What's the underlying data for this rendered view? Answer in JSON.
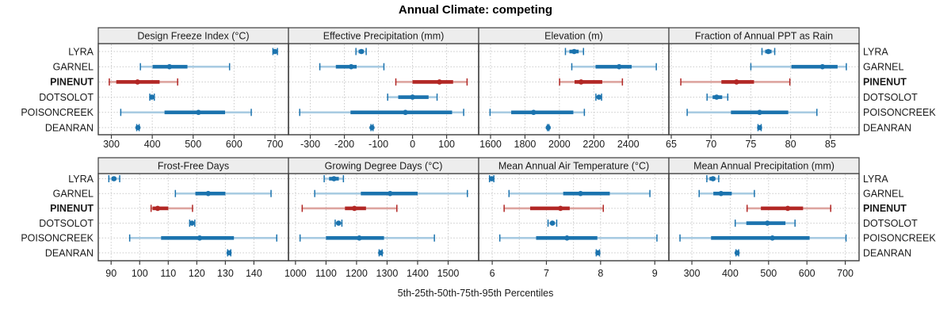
{
  "figure": {
    "title": "Annual Climate: competing",
    "caption": "5th-25th-50th-75th-95th Percentiles"
  },
  "chart_data": {
    "type": "scatter",
    "subtype": "percentile-interval-dotplot",
    "title": "Annual Climate: competing",
    "caption": "5th-25th-50th-75th-95th Percentiles",
    "percentiles": [
      5,
      25,
      50,
      75,
      95
    ],
    "sites": [
      "LYRA",
      "GARNEL",
      "PINENUT",
      "DOTSOLOT",
      "POISONCREEK",
      "DEANRAN"
    ],
    "highlight_site": "PINENUT",
    "legend_position": "none",
    "grid": true,
    "colors": {
      "site_color": "#1b73ae",
      "site_band_color": "#a8cbe2",
      "highlight_color": "#b22725",
      "highlight_band_color": "#dda49f",
      "grid_color": "#c9c9c9",
      "border_color": "#3c3c3c",
      "strip_bg": "#ededed",
      "text_color": "#1a1a1a"
    },
    "panels": [
      {
        "title": "Design Freeze Index (°C)",
        "row": 0,
        "col": 0,
        "xlim": [
          268,
          733
        ],
        "ticks": [
          300,
          400,
          500,
          600,
          700
        ],
        "tick_labels": [
          "300",
          "400",
          "500",
          "600",
          "700"
        ],
        "series": {
          "LYRA": [
            695,
            698,
            700,
            702,
            706
          ],
          "GARNEL": [
            371,
            401,
            442,
            486,
            589
          ],
          "PINENUT": [
            295,
            312,
            364,
            418,
            462
          ],
          "DOTSOLOT": [
            394,
            397,
            399,
            402,
            405
          ],
          "POISONCREEK": [
            323,
            430,
            513,
            578,
            642
          ],
          "DEANRAN": [
            362,
            364,
            365,
            366,
            368
          ]
        }
      },
      {
        "title": "Effective Precipitation (mm)",
        "row": 0,
        "col": 1,
        "xlim": [
          -364,
          194
        ],
        "ticks": [
          -300,
          -200,
          -100,
          0,
          100
        ],
        "tick_labels": [
          "-300",
          "-200",
          "-100",
          "0",
          "100"
        ],
        "series": {
          "LYRA": [
            -166,
            -158,
            -150,
            -143,
            -136
          ],
          "GARNEL": [
            -272,
            -225,
            -180,
            -164,
            -84
          ],
          "PINENUT": [
            -49,
            0,
            79,
            119,
            160
          ],
          "DOTSOLOT": [
            -73,
            -42,
            0,
            47,
            72
          ],
          "POISONCREEK": [
            -331,
            -182,
            -21,
            116,
            150
          ],
          "DEANRAN": [
            -122,
            -120,
            -119,
            -118,
            -116
          ]
        }
      },
      {
        "title": "Elevation (m)",
        "row": 0,
        "col": 2,
        "xlim": [
          1531,
          2636
        ],
        "ticks": [
          1600,
          1800,
          2000,
          2200,
          2400
        ],
        "grid_ticks": [
          1600,
          1800,
          2000,
          2200,
          2400,
          2600
        ],
        "tick_labels": [
          "1600",
          "1800",
          "2000",
          "2200",
          "2400"
        ],
        "series": {
          "LYRA": [
            2035,
            2058,
            2086,
            2112,
            2140
          ],
          "GARNEL": [
            2072,
            2210,
            2347,
            2420,
            2563
          ],
          "PINENUT": [
            2001,
            2088,
            2126,
            2249,
            2366
          ],
          "DOTSOLOT": [
            2212,
            2221,
            2230,
            2238,
            2245
          ],
          "POISONCREEK": [
            1597,
            1720,
            1850,
            2081,
            2145
          ],
          "DEANRAN": [
            1931,
            1933,
            1935,
            1937,
            1939
          ]
        }
      },
      {
        "title": "Fraction of Annual PPT as Rain",
        "row": 0,
        "col": 3,
        "xlim": [
          64.7,
          88.6
        ],
        "ticks": [
          65,
          70,
          75,
          80,
          85
        ],
        "tick_labels": [
          "65",
          "70",
          "75",
          "80",
          "85"
        ],
        "series": {
          "LYRA": [
            76.4,
            76.8,
            77.2,
            77.6,
            78.0
          ],
          "GARNEL": [
            75.0,
            80.1,
            84.0,
            85.9,
            87.0
          ],
          "PINENUT": [
            66.2,
            71.3,
            73.2,
            75.4,
            79.9
          ],
          "DOTSOLOT": [
            69.5,
            70.2,
            70.7,
            71.4,
            72.1
          ],
          "POISONCREEK": [
            67.0,
            72.5,
            76.1,
            79.7,
            83.3
          ],
          "DEANRAN": [
            75.9,
            76.0,
            76.1,
            76.2,
            76.3
          ]
        }
      },
      {
        "title": "Frost-Free Days",
        "row": 1,
        "col": 0,
        "xlim": [
          85.5,
          152.1
        ],
        "ticks": [
          90,
          100,
          110,
          120,
          130,
          140
        ],
        "tick_labels": [
          "90",
          "100",
          "110",
          "120",
          "130",
          "140"
        ],
        "series": {
          "LYRA": [
            89.2,
            90.2,
            91.0,
            91.7,
            93.0
          ],
          "GARNEL": [
            112.5,
            119.5,
            124,
            130,
            146
          ],
          "PINENUT": [
            104,
            104.5,
            106.3,
            110,
            118.5
          ],
          "DOTSOLOT": [
            117.5,
            118,
            118.3,
            118.8,
            119.3
          ],
          "POISONCREEK": [
            96.5,
            107.5,
            121,
            133,
            148
          ],
          "DEANRAN": [
            130.8,
            131,
            131.3,
            131.6,
            131.9
          ]
        }
      },
      {
        "title": "Growing Degree Days (°C)",
        "row": 1,
        "col": 1,
        "xlim": [
          977,
          1600
        ],
        "ticks": [
          1000,
          1100,
          1200,
          1300,
          1400,
          1500
        ],
        "tick_labels": [
          "1000",
          "1100",
          "1200",
          "1300",
          "1400",
          "1500"
        ],
        "series": {
          "LYRA": [
            1094,
            1110,
            1126,
            1142,
            1157
          ],
          "GARNEL": [
            1063,
            1214,
            1310,
            1400,
            1563
          ],
          "PINENUT": [
            1022,
            1162,
            1193,
            1231,
            1332
          ],
          "DOTSOLOT": [
            1130,
            1136,
            1141,
            1147,
            1152
          ],
          "POISONCREEK": [
            1015,
            1100,
            1209,
            1290,
            1455
          ],
          "DEANRAN": [
            1274,
            1277,
            1279,
            1281,
            1284
          ]
        }
      },
      {
        "title": "Mean Annual Air Temperature (°C)",
        "row": 1,
        "col": 2,
        "xlim": [
          5.75,
          9.26
        ],
        "ticks": [
          6,
          7,
          8,
          9
        ],
        "grid_ticks": [
          6,
          6.5,
          7,
          7.5,
          8,
          8.5,
          9
        ],
        "tick_labels": [
          "6",
          "7",
          "8",
          "9"
        ],
        "series": {
          "LYRA": [
            5.95,
            5.97,
            5.99,
            6.01,
            6.03
          ],
          "GARNEL": [
            6.31,
            7.31,
            7.63,
            8.17,
            8.91
          ],
          "PINENUT": [
            6.22,
            6.7,
            7.26,
            7.43,
            8.05
          ],
          "DOTSOLOT": [
            7.03,
            7.08,
            7.11,
            7.15,
            7.19
          ],
          "POISONCREEK": [
            6.14,
            6.81,
            7.38,
            7.94,
            9.04
          ],
          "DEANRAN": [
            7.92,
            7.94,
            7.95,
            7.96,
            7.98
          ]
        }
      },
      {
        "title": "Mean Annual Precipitation (mm)",
        "row": 1,
        "col": 3,
        "xlim": [
          240,
          736
        ],
        "ticks": [
          300,
          400,
          500,
          600,
          700
        ],
        "tick_labels": [
          "300",
          "400",
          "500",
          "600",
          "700"
        ],
        "series": {
          "LYRA": [
            339,
            346,
            355,
            361,
            370
          ],
          "GARNEL": [
            319,
            356,
            376,
            404,
            463
          ],
          "PINENUT": [
            444,
            480,
            550,
            590,
            662
          ],
          "DOTSOLOT": [
            413,
            442,
            497,
            544,
            569
          ],
          "POISONCREEK": [
            269,
            350,
            510,
            607,
            702
          ],
          "DEANRAN": [
            415,
            417,
            418,
            420,
            422
          ]
        }
      }
    ]
  }
}
